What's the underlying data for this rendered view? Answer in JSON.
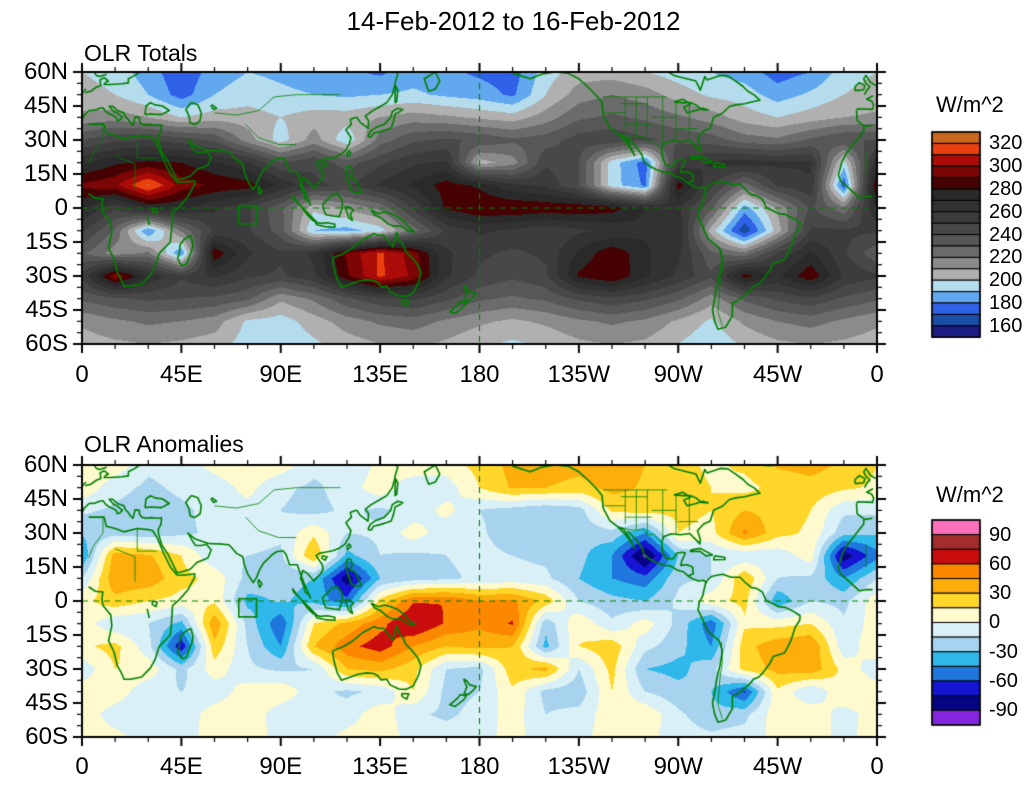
{
  "title": "14-Feb-2012 to 16-Feb-2012",
  "panels": [
    {
      "title": "OLR Totals",
      "units_label": "W/m^2"
    },
    {
      "title": "OLR Anomalies",
      "units_label": "W/m^2"
    }
  ],
  "chart_data": [
    {
      "type": "heatmap",
      "subtype": "filled-contour-world-map",
      "title": "OLR Totals",
      "units": "W/m^2",
      "projection": "equirectangular",
      "lon_range": [
        0,
        360
      ],
      "lat_range": [
        -60,
        60
      ],
      "x_ticks_deg": [
        0,
        45,
        90,
        135,
        180,
        225,
        270,
        315,
        360
      ],
      "x_tick_labels": [
        "0",
        "45E",
        "90E",
        "135E",
        "180",
        "135W",
        "90W",
        "45W",
        "0"
      ],
      "y_ticks_deg": [
        60,
        45,
        30,
        15,
        0,
        -15,
        -30,
        -45,
        -60
      ],
      "y_tick_labels": [
        "60N",
        "45N",
        "30N",
        "15N",
        "0",
        "15S",
        "30S",
        "45S",
        "60S"
      ],
      "levels": {
        "min": 150,
        "max": 330,
        "step": 10
      },
      "colors_low_to_high": [
        "#1c1c85",
        "#1b4fa5",
        "#2f62e8",
        "#61a8ee",
        "#b5dced",
        "#b0b0b0",
        "#8b8b8b",
        "#6b6b6b",
        "#575757",
        "#484848",
        "#3c3c3c",
        "#323232",
        "#2a2a2a",
        "#460202",
        "#7c0505",
        "#ab0c08",
        "#e8400e",
        "#c9661f"
      ],
      "colorbar_tick_labels": [
        "320",
        "300",
        "280",
        "260",
        "240",
        "220",
        "200",
        "180",
        "160"
      ],
      "grid_lons": [
        0,
        15,
        30,
        45,
        60,
        75,
        90,
        105,
        120,
        135,
        150,
        165,
        180,
        195,
        210,
        225,
        240,
        255,
        270,
        285,
        300,
        315,
        330,
        345,
        360
      ],
      "grid_lats": [
        60,
        50,
        40,
        30,
        20,
        10,
        0,
        -10,
        -20,
        -30,
        -40,
        -50,
        -60
      ],
      "values": [
        [
          200,
          195,
          185,
          172,
          185,
          190,
          188,
          185,
          182,
          178,
          185,
          182,
          178,
          175,
          195,
          205,
          205,
          200,
          195,
          190,
          185,
          175,
          180,
          195,
          200
        ],
        [
          205,
          200,
          190,
          175,
          190,
          195,
          192,
          190,
          188,
          190,
          192,
          188,
          185,
          178,
          200,
          215,
          220,
          215,
          205,
          198,
          195,
          185,
          192,
          200,
          205
        ],
        [
          212,
          215,
          210,
          200,
          205,
          205,
          200,
          205,
          205,
          210,
          215,
          212,
          208,
          205,
          215,
          228,
          232,
          228,
          222,
          215,
          205,
          200,
          205,
          210,
          212
        ],
        [
          240,
          248,
          250,
          245,
          238,
          215,
          195,
          215,
          192,
          225,
          238,
          242,
          238,
          232,
          235,
          245,
          248,
          242,
          238,
          235,
          225,
          222,
          232,
          240,
          240
        ],
        [
          268,
          278,
          282,
          280,
          272,
          262,
          240,
          248,
          235,
          248,
          258,
          262,
          205,
          215,
          248,
          240,
          195,
          175,
          252,
          262,
          265,
          262,
          262,
          195,
          268
        ],
        [
          292,
          298,
          322,
          295,
          288,
          285,
          268,
          252,
          248,
          262,
          272,
          285,
          278,
          262,
          258,
          240,
          195,
          178,
          285,
          252,
          225,
          252,
          258,
          172,
          292
        ],
        [
          272,
          252,
          272,
          272,
          262,
          252,
          232,
          202,
          212,
          222,
          252,
          282,
          290,
          290,
          288,
          288,
          285,
          270,
          262,
          232,
          185,
          212,
          242,
          222,
          272
        ],
        [
          252,
          228,
          180,
          222,
          252,
          252,
          235,
          190,
          186,
          195,
          225,
          252,
          262,
          258,
          252,
          258,
          262,
          268,
          268,
          205,
          162,
          205,
          252,
          252,
          252
        ],
        [
          232,
          215,
          222,
          180,
          288,
          262,
          252,
          262,
          292,
          312,
          295,
          262,
          252,
          248,
          252,
          272,
          288,
          272,
          262,
          232,
          222,
          252,
          272,
          252,
          232
        ],
        [
          252,
          298,
          268,
          252,
          262,
          252,
          248,
          258,
          288,
          312,
          298,
          262,
          248,
          242,
          248,
          282,
          290,
          272,
          258,
          242,
          285,
          268,
          288,
          258,
          252
        ],
        [
          232,
          238,
          242,
          240,
          238,
          232,
          212,
          222,
          238,
          248,
          252,
          242,
          232,
          228,
          232,
          242,
          248,
          242,
          232,
          215,
          232,
          242,
          248,
          238,
          232
        ],
        [
          212,
          218,
          222,
          220,
          215,
          198,
          195,
          205,
          215,
          222,
          225,
          218,
          212,
          208,
          212,
          218,
          222,
          218,
          208,
          198,
          212,
          220,
          224,
          218,
          212
        ],
        [
          205,
          208,
          210,
          208,
          205,
          195,
          192,
          198,
          205,
          210,
          212,
          208,
          202,
          198,
          202,
          208,
          210,
          208,
          200,
          192,
          202,
          208,
          210,
          208,
          205
        ]
      ],
      "reference": {
        "equator_dashed_line": true,
        "dateline_dashed_line": true,
        "box_lon": [
          71,
          79
        ],
        "box_lat": [
          -7,
          1
        ]
      }
    },
    {
      "type": "heatmap",
      "subtype": "filled-contour-world-map",
      "title": "OLR Anomalies",
      "units": "W/m^2",
      "projection": "equirectangular",
      "lon_range": [
        0,
        360
      ],
      "lat_range": [
        -60,
        60
      ],
      "x_ticks_deg": [
        0,
        45,
        90,
        135,
        180,
        225,
        270,
        315,
        360
      ],
      "x_tick_labels": [
        "0",
        "45E",
        "90E",
        "135E",
        "180",
        "135W",
        "90W",
        "45W",
        "0"
      ],
      "y_ticks_deg": [
        60,
        45,
        30,
        15,
        0,
        -15,
        -30,
        -45,
        -60
      ],
      "y_tick_labels": [
        "60N",
        "45N",
        "30N",
        "15N",
        "0",
        "15S",
        "30S",
        "45S",
        "60S"
      ],
      "levels": {
        "min": -105,
        "max": 105,
        "step": 15
      },
      "colors_low_to_high": [
        "#8426e0",
        "#050583",
        "#1515d3",
        "#1f76dd",
        "#30b8ea",
        "#a8d3ee",
        "#d9f0f7",
        "#fefacd",
        "#ffd629",
        "#fcae0b",
        "#fc8800",
        "#c90d0d",
        "#a32c2c",
        "#fb6fbb"
      ],
      "colorbar_tick_labels": [
        "90",
        "60",
        "30",
        "0",
        "-30",
        "-60",
        "-90"
      ],
      "grid_lons": [
        0,
        15,
        30,
        45,
        60,
        75,
        90,
        105,
        120,
        135,
        150,
        165,
        180,
        195,
        210,
        225,
        240,
        255,
        270,
        285,
        300,
        315,
        330,
        345,
        360
      ],
      "grid_lats": [
        60,
        50,
        40,
        30,
        20,
        10,
        0,
        -10,
        -20,
        -30,
        -40,
        -50,
        -60
      ],
      "values": [
        [
          15,
          10,
          -12,
          -8,
          5,
          12,
          8,
          -10,
          -15,
          5,
          12,
          8,
          20,
          35,
          38,
          35,
          38,
          30,
          20,
          12,
          18,
          32,
          35,
          28,
          15
        ],
        [
          12,
          -10,
          -18,
          -12,
          -8,
          5,
          -12,
          -18,
          -8,
          10,
          -12,
          -8,
          15,
          32,
          30,
          25,
          35,
          28,
          22,
          15,
          10,
          20,
          25,
          18,
          12
        ],
        [
          -12,
          -18,
          -22,
          -18,
          -10,
          -5,
          -15,
          -20,
          -12,
          -18,
          -10,
          5,
          -15,
          -22,
          -28,
          -22,
          18,
          22,
          20,
          15,
          30,
          25,
          15,
          -12,
          -12
        ],
        [
          -28,
          -22,
          -25,
          -18,
          -12,
          -8,
          -12,
          12,
          -15,
          -12,
          8,
          -10,
          -12,
          -25,
          -30,
          -25,
          -20,
          -45,
          15,
          10,
          48,
          20,
          12,
          -25,
          -28
        ],
        [
          -45,
          38,
          32,
          15,
          -12,
          -15,
          -18,
          30,
          -35,
          -15,
          -18,
          -15,
          -10,
          -15,
          -18,
          -25,
          -45,
          -95,
          -30,
          -15,
          -12,
          -10,
          8,
          -85,
          -50
        ],
        [
          -15,
          42,
          40,
          20,
          10,
          -20,
          -25,
          -30,
          -85,
          -30,
          -22,
          -18,
          -12,
          -10,
          -12,
          -30,
          -45,
          -55,
          -18,
          -15,
          28,
          -15,
          -18,
          -45,
          -15
        ],
        [
          10,
          25,
          15,
          10,
          12,
          -35,
          -28,
          -35,
          -55,
          20,
          58,
          60,
          45,
          48,
          25,
          -15,
          -25,
          -30,
          -12,
          10,
          20,
          -42,
          -15,
          -20,
          10
        ],
        [
          8,
          -12,
          -15,
          -35,
          42,
          -20,
          -58,
          15,
          35,
          55,
          78,
          58,
          48,
          62,
          -25,
          12,
          -12,
          8,
          -20,
          -55,
          12,
          10,
          15,
          -12,
          8
        ],
        [
          12,
          20,
          -10,
          -72,
          25,
          -15,
          -45,
          30,
          55,
          68,
          45,
          30,
          35,
          30,
          -35,
          15,
          25,
          -10,
          -25,
          -45,
          25,
          40,
          45,
          -10,
          12
        ],
        [
          -10,
          15,
          10,
          -20,
          8,
          -12,
          -18,
          -15,
          30,
          35,
          20,
          -15,
          -20,
          25,
          35,
          -15,
          20,
          -30,
          -35,
          -20,
          20,
          35,
          40,
          10,
          -10
        ],
        [
          8,
          10,
          -12,
          -15,
          -10,
          8,
          12,
          -10,
          -18,
          -12,
          15,
          -20,
          -15,
          12,
          -20,
          -25,
          15,
          -15,
          -25,
          -30,
          -62,
          12,
          -15,
          15,
          8
        ],
        [
          10,
          -8,
          -15,
          -10,
          8,
          12,
          -10,
          -15,
          -8,
          10,
          -12,
          -18,
          -10,
          8,
          -15,
          -10,
          10,
          12,
          -12,
          -25,
          -20,
          10,
          12,
          -8,
          10
        ],
        [
          8,
          5,
          -8,
          -5,
          5,
          8,
          -5,
          -8,
          5,
          8,
          -5,
          -8,
          -5,
          5,
          -8,
          -5,
          8,
          5,
          -8,
          -12,
          -8,
          5,
          8,
          -5,
          8
        ]
      ],
      "reference": {
        "equator_dashed_line": true,
        "dateline_dashed_line": true,
        "box_lon": [
          71,
          79
        ],
        "box_lat": [
          -7,
          1
        ]
      }
    }
  ],
  "map_colors": {
    "coastline_green": "#008000",
    "axis_black": "#000000"
  }
}
